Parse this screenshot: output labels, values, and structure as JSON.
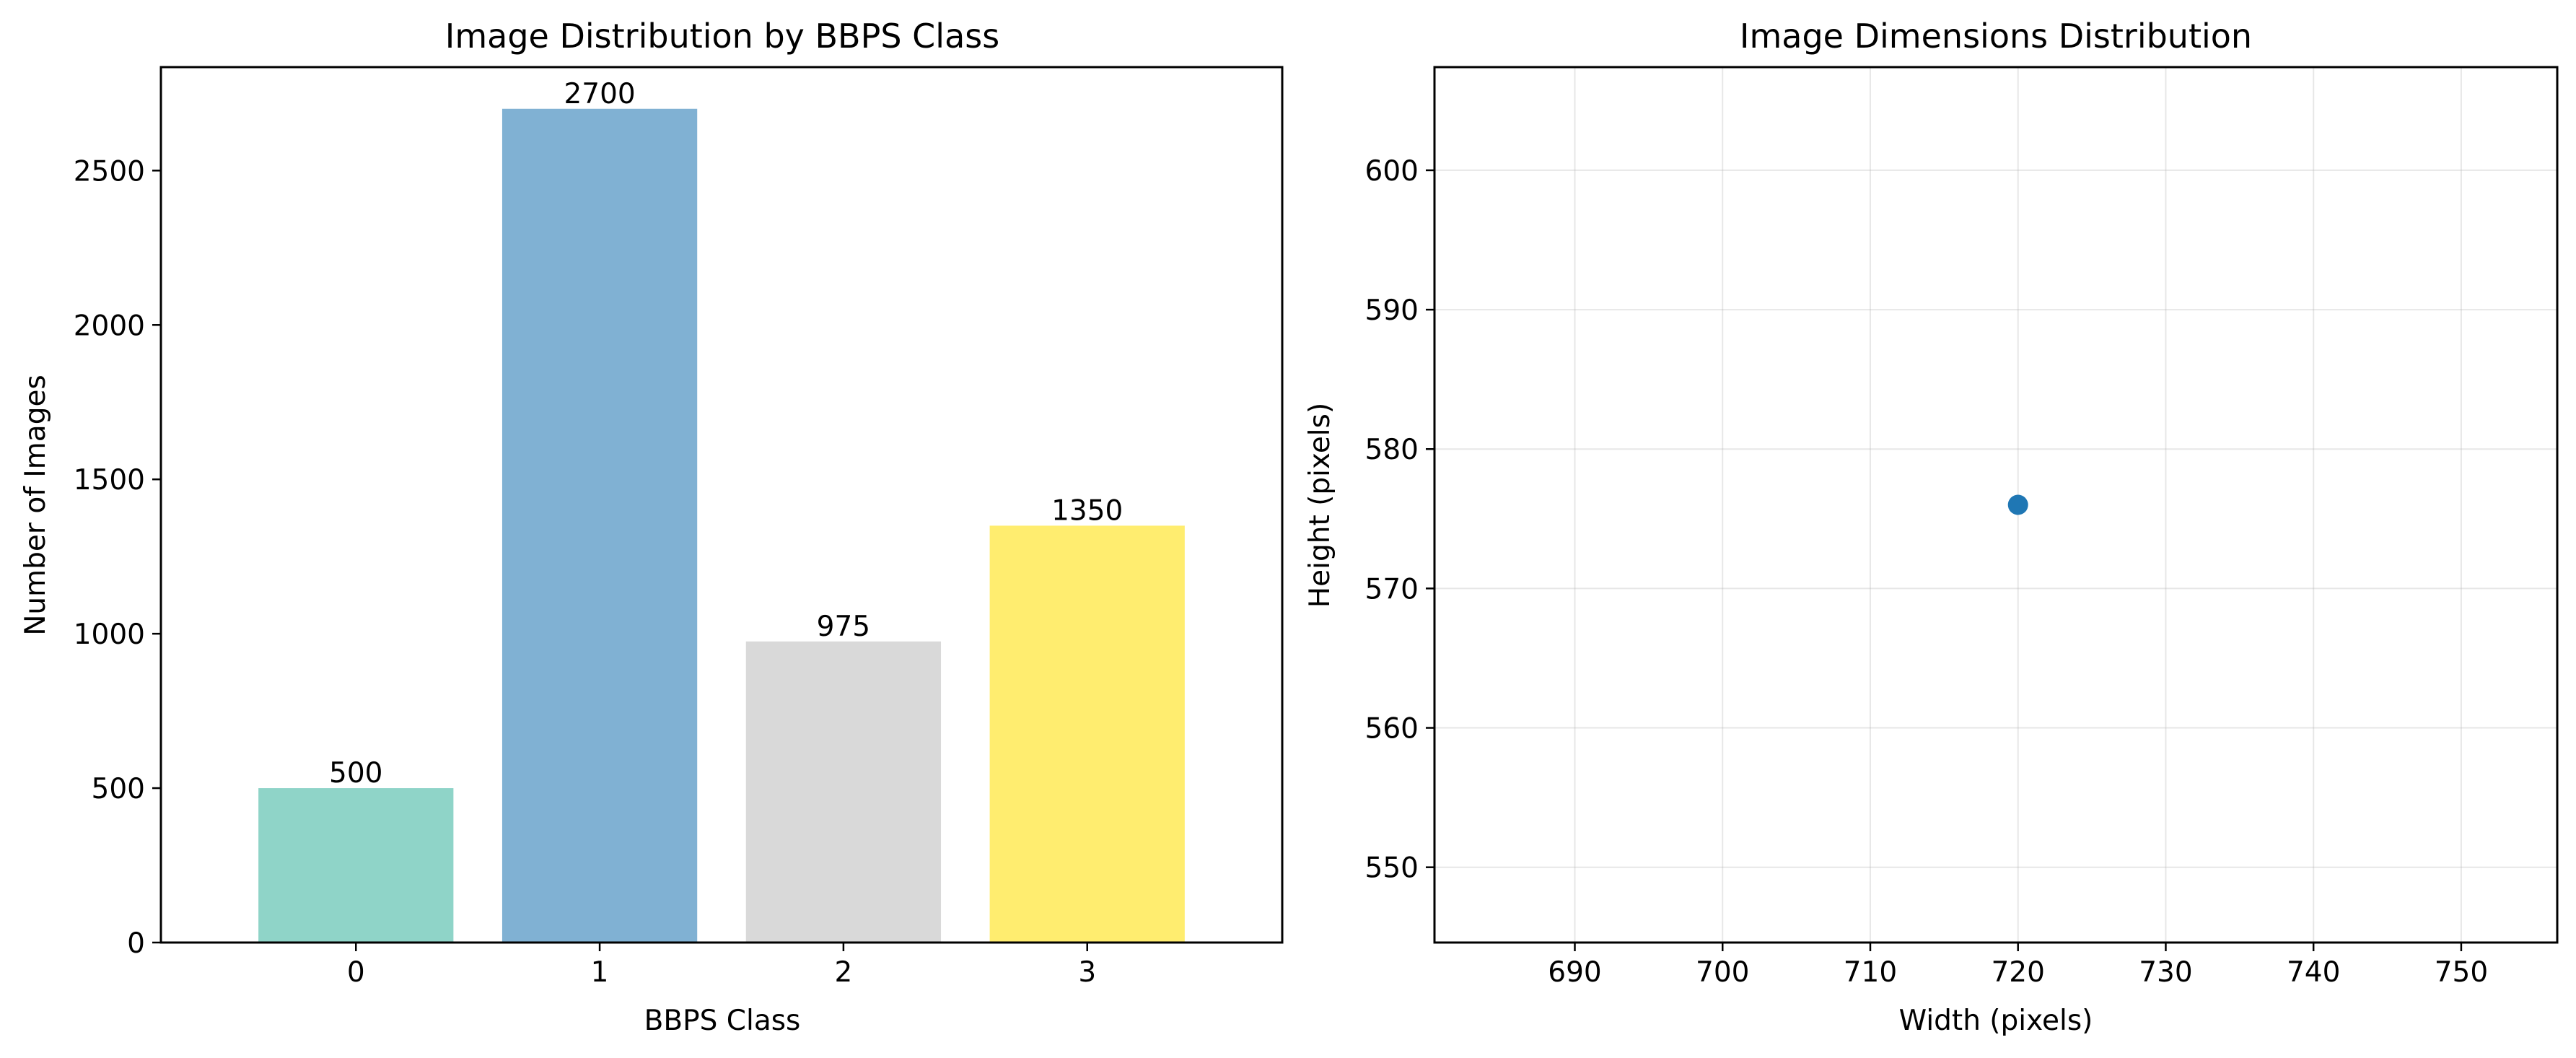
{
  "chart_data": [
    {
      "type": "bar",
      "title": "Image Distribution by BBPS Class",
      "xlabel": "BBPS Class",
      "ylabel": "Number of Images",
      "categories": [
        "0",
        "1",
        "2",
        "3"
      ],
      "values": [
        500,
        2700,
        975,
        1350
      ],
      "data_labels": [
        "500",
        "2700",
        "975",
        "1350"
      ],
      "colors": [
        "#8fd4c8",
        "#80b1d3",
        "#d9d9d9",
        "#ffed6f"
      ],
      "ylim": [
        0,
        2835
      ],
      "yticks": [
        0,
        500,
        1000,
        1500,
        2000,
        2500
      ],
      "grid": false,
      "legend": "none"
    },
    {
      "type": "scatter",
      "title": "Image Dimensions Distribution",
      "xlabel": "Width (pixels)",
      "ylabel": "Height (pixels)",
      "points": [
        {
          "x": 720,
          "y": 576
        }
      ],
      "point_color": "#1f77b4",
      "xlim": [
        680.5,
        756.5
      ],
      "ylim": [
        544.6,
        607.4
      ],
      "xticks": [
        690,
        700,
        710,
        720,
        730,
        740,
        750
      ],
      "yticks": [
        550,
        560,
        570,
        580,
        590,
        600
      ],
      "grid": true,
      "legend": "none"
    }
  ]
}
